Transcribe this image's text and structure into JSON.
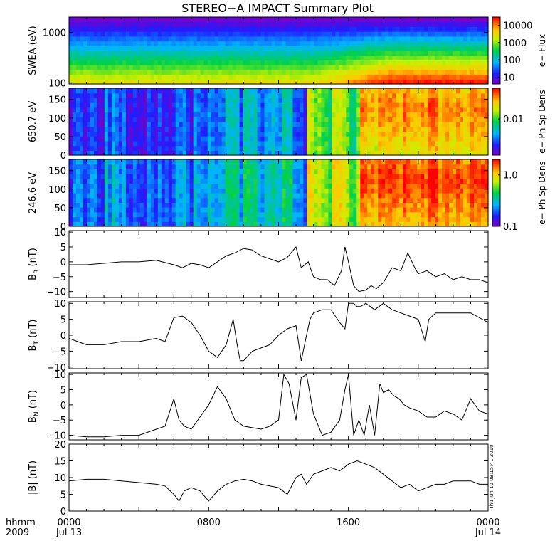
{
  "title": "STEREO−A IMPACT Summary Plot",
  "chart_data": [
    {
      "type": "heatmap",
      "panel": "swea",
      "ylabel": "SWEA (eV)",
      "y_scale": "log",
      "ylim": [
        95,
        2000
      ],
      "y_ticks": [
        {
          "v": 100,
          "label": "100"
        },
        {
          "v": 1000,
          "label": "1000"
        }
      ],
      "colorbar_label": "e− Flux",
      "colorbar_scale": "log",
      "colorbar_range": [
        4,
        30000
      ],
      "colorbar_ticks": [
        {
          "v": 10,
          "label": "10"
        },
        {
          "v": 100,
          "label": "100"
        },
        {
          "v": 1000,
          "label": "1000"
        },
        {
          "v": 10000,
          "label": "10000"
        }
      ]
    },
    {
      "type": "heatmap",
      "panel": "pad650",
      "ylabel": "650.7 eV",
      "ylim": [
        0,
        180
      ],
      "y_ticks": [
        {
          "v": 0,
          "label": "0"
        },
        {
          "v": 50,
          "label": "50"
        },
        {
          "v": 100,
          "label": "100"
        },
        {
          "v": 150,
          "label": "150"
        }
      ],
      "colorbar_label": "e− Ph Sp Dens",
      "colorbar_scale": "log",
      "colorbar_range": [
        0.0015,
        0.05
      ],
      "colorbar_ticks": [
        {
          "v": 0.01,
          "label": "0.01"
        }
      ]
    },
    {
      "type": "heatmap",
      "panel": "pad246",
      "ylabel": "246.6 eV",
      "ylim": [
        0,
        180
      ],
      "y_ticks": [
        {
          "v": 0,
          "label": "0"
        },
        {
          "v": 50,
          "label": "50"
        },
        {
          "v": 100,
          "label": "100"
        },
        {
          "v": 150,
          "label": "150"
        }
      ],
      "colorbar_label": "e− Ph Sp Dens",
      "colorbar_scale": "log",
      "colorbar_range": [
        0.1,
        2.0
      ],
      "colorbar_ticks": [
        {
          "v": 0.1,
          "label": "0.1"
        },
        {
          "v": 1.0,
          "label": "1.0"
        }
      ]
    },
    {
      "type": "line",
      "panel": "br",
      "ylabel": "B",
      "ylabel_sub": "R",
      "ylabel_unit": " (nT)",
      "ylim": [
        -12,
        10.5
      ],
      "y_ticks": [
        {
          "v": -10,
          "label": "−10"
        },
        {
          "v": -5,
          "label": "−5"
        },
        {
          "v": 0,
          "label": "0"
        },
        {
          "v": 5,
          "label": "5"
        },
        {
          "v": 10,
          "label": "10"
        }
      ],
      "x_hours": [
        0,
        1,
        2,
        3,
        4,
        5,
        6,
        6.5,
        7,
        7.5,
        8,
        8.5,
        9,
        9.5,
        10,
        10.5,
        11,
        11.5,
        12,
        12.5,
        13,
        13.3,
        13.7,
        14,
        14.4,
        14.8,
        15.2,
        15.6,
        15.8,
        16,
        16.3,
        16.6,
        17,
        17.3,
        17.6,
        18,
        18.5,
        19,
        19.4,
        19.8,
        20,
        20.5,
        21,
        21.5,
        22,
        22.5,
        23,
        23.5,
        24
      ],
      "values": [
        -1,
        -1,
        -0.5,
        0,
        0,
        0.5,
        -1,
        -2,
        -0.5,
        -1,
        -2,
        0,
        2,
        3,
        4.5,
        4,
        2,
        1,
        0,
        1.5,
        5,
        -2,
        0,
        -5,
        -6,
        -6,
        -8,
        -3,
        5,
        0,
        -8,
        -10,
        -9.5,
        -8,
        -9,
        -7,
        -2,
        -3,
        3,
        -2,
        -4,
        -3,
        -5,
        -4,
        -6,
        -5,
        -6,
        -6,
        -7
      ]
    },
    {
      "type": "line",
      "panel": "bt",
      "ylabel": "B",
      "ylabel_sub": "T",
      "ylabel_unit": " (nT)",
      "ylim": [
        -10.5,
        10.5
      ],
      "y_ticks": [
        {
          "v": -10,
          "label": "−10"
        },
        {
          "v": -5,
          "label": "−5"
        },
        {
          "v": 0,
          "label": "0"
        },
        {
          "v": 5,
          "label": "5"
        },
        {
          "v": 10,
          "label": "10"
        }
      ],
      "x_hours": [
        0,
        1,
        2,
        3,
        4,
        5,
        5.5,
        6,
        6.5,
        7,
        7.5,
        8,
        8.5,
        9,
        9.4,
        9.6,
        9.8,
        10,
        10.5,
        11,
        11.5,
        12,
        12.5,
        13,
        13.3,
        13.6,
        13.8,
        14,
        14.5,
        15,
        15.5,
        15.8,
        16,
        16.3,
        16.5,
        16.7,
        17,
        17.5,
        18,
        18.5,
        19,
        19.5,
        20,
        20.4,
        20.6,
        20.8,
        21,
        22,
        23,
        24
      ],
      "values": [
        -1,
        -3,
        -3,
        -2,
        -2,
        -1,
        -2,
        5.5,
        6,
        4,
        0,
        -5,
        -7,
        -3,
        5,
        -2,
        -8,
        -8,
        -5,
        -4,
        -3,
        0,
        2,
        3,
        -8,
        0,
        5,
        7,
        8,
        8,
        4,
        2,
        10,
        10,
        9,
        9,
        10,
        8,
        10,
        8,
        7,
        6,
        5,
        -2,
        5,
        6,
        7,
        7,
        7,
        4
      ]
    },
    {
      "type": "line",
      "panel": "bn",
      "ylabel": "B",
      "ylabel_sub": "N",
      "ylabel_unit": " (nT)",
      "ylim": [
        -11.5,
        10.5
      ],
      "y_ticks": [
        {
          "v": -10,
          "label": "−10"
        },
        {
          "v": -5,
          "label": "−5"
        },
        {
          "v": 0,
          "label": "0"
        },
        {
          "v": 5,
          "label": "5"
        },
        {
          "v": 10,
          "label": "10"
        }
      ],
      "x_hours": [
        0,
        1,
        2,
        3,
        4,
        5,
        5.5,
        6,
        6.3,
        6.6,
        7,
        8,
        8.5,
        9,
        9.5,
        10,
        11,
        11.5,
        12,
        12.3,
        12.6,
        13,
        13.3,
        13.6,
        14,
        14.5,
        15,
        15.5,
        15.8,
        16,
        16.3,
        16.6,
        16.9,
        17.2,
        17.5,
        17.8,
        18,
        18.3,
        18.6,
        18.9,
        19.2,
        19.5,
        20,
        20.5,
        21,
        21.5,
        22,
        22.5,
        23,
        23.5,
        24
      ],
      "values": [
        -10,
        -10.5,
        -10.5,
        -10,
        -10,
        -8,
        -7,
        2,
        -5,
        -7,
        -8,
        0,
        6,
        2,
        -5,
        -7,
        -8,
        -7,
        -5,
        10,
        7,
        -5,
        9,
        10,
        -3,
        -10,
        -9,
        -5,
        5,
        10,
        -10,
        -5,
        -10,
        0,
        -10,
        7,
        4,
        5,
        3,
        2,
        0,
        -1,
        -2,
        -4,
        -4,
        -2,
        -3,
        -5,
        2,
        -2,
        -3
      ]
    },
    {
      "type": "line",
      "panel": "babs",
      "ylabel": "|B| (nT)",
      "ylim": [
        0,
        20
      ],
      "y_ticks": [
        {
          "v": 0,
          "label": "0"
        },
        {
          "v": 5,
          "label": "5"
        },
        {
          "v": 10,
          "label": "10"
        },
        {
          "v": 15,
          "label": "15"
        },
        {
          "v": 20,
          "label": "20"
        }
      ],
      "x_hours": [
        0,
        1,
        2,
        3,
        4,
        5,
        5.5,
        6,
        6.3,
        6.6,
        7,
        7.5,
        8,
        8.5,
        9,
        9.5,
        10,
        10.5,
        11,
        11.5,
        12,
        12.5,
        13,
        13.3,
        13.6,
        14,
        14.5,
        15,
        15.5,
        16,
        16.5,
        17,
        17.5,
        18,
        18.5,
        19,
        19.5,
        20,
        20.5,
        21,
        21.5,
        22,
        22.5,
        23,
        23.5,
        24
      ],
      "values": [
        9,
        9.5,
        9.5,
        9,
        8.5,
        8,
        7.5,
        5,
        3,
        6,
        7,
        6,
        3,
        6,
        8,
        9,
        9.5,
        9,
        8,
        7.5,
        7,
        5,
        10,
        11,
        8,
        11,
        12,
        13,
        12,
        14,
        15,
        14,
        13,
        11,
        9,
        7,
        8,
        6,
        7,
        8,
        8,
        9,
        9,
        9,
        8,
        8
      ]
    }
  ],
  "x_axis": {
    "range_hours": [
      0,
      24
    ],
    "row1_label": "hhmm",
    "row2_label": "2009",
    "tick_labels": [
      {
        "hour": 0,
        "time": "0000",
        "date": "Jul 13"
      },
      {
        "hour": 8,
        "time": "0800",
        "date": ""
      },
      {
        "hour": 16,
        "time": "1600",
        "date": ""
      },
      {
        "hour": 24,
        "time": "0000",
        "date": "Jul 14"
      }
    ]
  },
  "timestamp": "Thu Jun 10 08:15:41 2010"
}
